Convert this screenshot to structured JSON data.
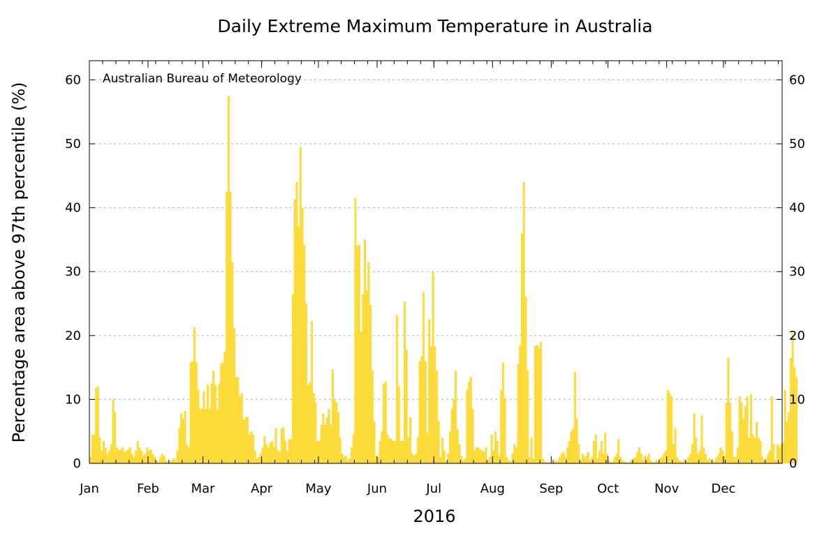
{
  "chart_data": {
    "type": "bar",
    "title": "Daily Extreme Maximum Temperature in Australia",
    "ylabel": "Percentage area above 97th percentile (%)",
    "xlabel": "2016",
    "credit": "Australian Bureau of Meteorology",
    "ylim": [
      0,
      63
    ],
    "yticks": [
      0,
      10,
      20,
      30,
      40,
      50,
      60
    ],
    "grid": true,
    "bar_color": "#fddb3a",
    "months": [
      "Jan",
      "Feb",
      "Mar",
      "Apr",
      "May",
      "Jun",
      "Jul",
      "Aug",
      "Sep",
      "Oct",
      "Nov",
      "Dec"
    ],
    "x_start": "2016-01-01",
    "x_end": "2016-12-31",
    "values": [
      1,
      4.5,
      4.5,
      11.8,
      12,
      4,
      2,
      3.5,
      2.5,
      1.5,
      2,
      3,
      10,
      8,
      2.5,
      2,
      2.2,
      2.5,
      1.8,
      2,
      2.2,
      2.5,
      1.5,
      1,
      2,
      3.5,
      2.5,
      2,
      1.2,
      1.5,
      2.5,
      2,
      2.2,
      1.5,
      1,
      0.5,
      0.2,
      1,
      1.5,
      1.2,
      0.5,
      0.2,
      0.2,
      0.5,
      0.8,
      0.5,
      2,
      5.5,
      7.8,
      7,
      8.2,
      3,
      2.5,
      15.8,
      16,
      21.3,
      15.8,
      11.5,
      8.5,
      8.6,
      11.3,
      8.5,
      12.3,
      8.5,
      12.5,
      14.5,
      12.3,
      8.4,
      12.5,
      15.6,
      15.8,
      17.5,
      42.5,
      57.5,
      42.5,
      31.5,
      21.2,
      13.5,
      13.5,
      10.5,
      11,
      6.8,
      7.2,
      7.3,
      4.5,
      5,
      4.5,
      2,
      0.8,
      1,
      1.5,
      2.5,
      4.3,
      3,
      2.5,
      3.2,
      3.5,
      2.5,
      5.5,
      2,
      1.8,
      5.5,
      5.6,
      3.5,
      2,
      3.8,
      3.8,
      26.5,
      41.3,
      44,
      37,
      49.5,
      40,
      34.2,
      25,
      12.2,
      12.7,
      22.3,
      11,
      9.5,
      3.5,
      3.5,
      6,
      7.8,
      6,
      7.2,
      8.5,
      6,
      14.7,
      10,
      9.5,
      8,
      4,
      1.5,
      1,
      1.2,
      0.5,
      0.8,
      2.5,
      4.5,
      41.5,
      34,
      34.2,
      20.6,
      26.5,
      35,
      27,
      31.5,
      24.8,
      14.5,
      6.5,
      1.2,
      1,
      3.5,
      5,
      12.5,
      12.8,
      4.5,
      4,
      3.8,
      3.5,
      3.5,
      23.2,
      12,
      3.5,
      3.5,
      25.3,
      17.8,
      4,
      7.2,
      1.5,
      1.2,
      1.5,
      4,
      16,
      16.8,
      26.8,
      16,
      4.8,
      22.5,
      18.3,
      29.9,
      18.3,
      14.5,
      6.6,
      1,
      4,
      2,
      0.2,
      1.5,
      5,
      8.5,
      10,
      14.5,
      5.3,
      3,
      1.2,
      0.5,
      0.8,
      11.5,
      12.8,
      13.5,
      8.5,
      2,
      2.5,
      2.5,
      2.2,
      2,
      1.8,
      2.5,
      0.5,
      1,
      4.5,
      2,
      5,
      3.5,
      1.2,
      11.5,
      15.8,
      10.2,
      1,
      0.5,
      0.3,
      1.5,
      3,
      2.5,
      15.5,
      18.5,
      36,
      44,
      26,
      14.5,
      1,
      4,
      0.8,
      18.4,
      18.5,
      18,
      19,
      0.8,
      0.3,
      0.2,
      0.1,
      0.2,
      0.1,
      0.2,
      0.5,
      0.3,
      1,
      1.5,
      1.8,
      1,
      2.5,
      3.5,
      5,
      5.5,
      14.3,
      7,
      3,
      0.5,
      1.5,
      1,
      1.2,
      1.8,
      0.5,
      1,
      3.5,
      4.5,
      0.8,
      2,
      3.5,
      1.5,
      4.8,
      1.5,
      0.5,
      0.2,
      0.3,
      1,
      1.5,
      3.8,
      1,
      0.5,
      0.3,
      0.2,
      0.1,
      0.3,
      0.5,
      0.8,
      1,
      1.8,
      2.5,
      1.5,
      0.5,
      1.2,
      1,
      1.5,
      0.5,
      0.2,
      0.1,
      0.5,
      0.3,
      0.8,
      1,
      1.5,
      2,
      11.5,
      11,
      10.5,
      3,
      5.5,
      1,
      0.5,
      0.3,
      0.2,
      0.5,
      0.3,
      1,
      1.5,
      3,
      7.8,
      4,
      1.5,
      2,
      7.5,
      2.5,
      1.5,
      0.5,
      0.8,
      0.5,
      0.2,
      0.5,
      1,
      1.5,
      2.5,
      2,
      1.2,
      9.5,
      16.5,
      9.5,
      5,
      1,
      1,
      2.5,
      10.5,
      9.5,
      7,
      9,
      10.5,
      4,
      10.8,
      4.5,
      4,
      6.5,
      4,
      3.5,
      1,
      0.5,
      0.8,
      1.5,
      2,
      10.5,
      3,
      0.5,
      3,
      2.5,
      3,
      3.2,
      11.5,
      6.5,
      8,
      16.5,
      20.3,
      15,
      13.5
    ]
  }
}
